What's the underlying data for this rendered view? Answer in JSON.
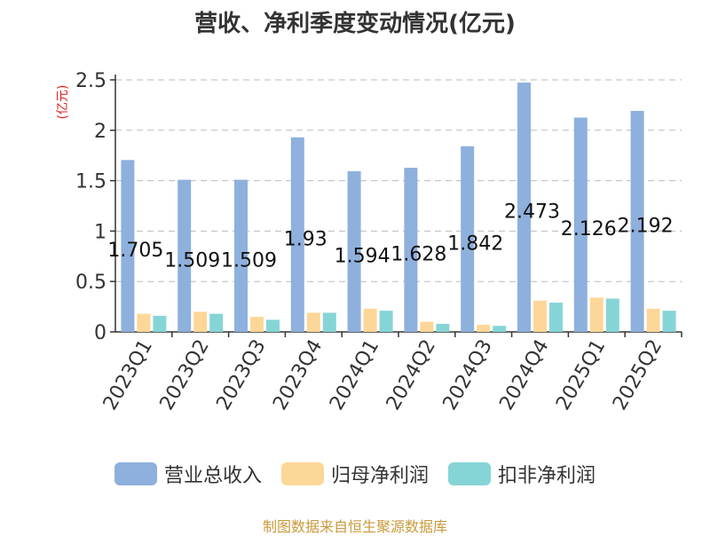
{
  "title": "营收、净利季度变动情况(亿元)",
  "source": "制图数据来自恒生聚源数据库",
  "chart_data": {
    "type": "bar",
    "title": "营收、净利季度变动情况(亿元)",
    "ylabel": "(亿元)",
    "ylim": [
      0,
      2.5
    ],
    "yticks": [
      "0",
      "0.5",
      "1",
      "1.5",
      "2",
      "2.5"
    ],
    "grid": true,
    "legend_position": "bottom",
    "categories": [
      "2023Q1",
      "2023Q2",
      "2023Q3",
      "2023Q4",
      "2024Q1",
      "2024Q2",
      "2024Q3",
      "2024Q4",
      "2025Q1",
      "2025Q2"
    ],
    "series": [
      {
        "name": "营业总收入",
        "color": "#8eb0dc",
        "values": [
          1.705,
          1.509,
          1.509,
          1.93,
          1.594,
          1.628,
          1.842,
          2.473,
          2.126,
          2.192
        ],
        "labels": [
          "1.705",
          "1.509",
          "1.509",
          "1.93",
          "1.594",
          "1.628",
          "1.842",
          "2.473",
          "2.126",
          "2.192"
        ]
      },
      {
        "name": "归母净利润",
        "color": "#fdd797",
        "values": [
          0.18,
          0.2,
          0.15,
          0.19,
          0.23,
          0.1,
          0.07,
          0.31,
          0.34,
          0.23
        ]
      },
      {
        "name": "扣非净利润",
        "color": "#86d5d6",
        "values": [
          0.16,
          0.18,
          0.12,
          0.19,
          0.21,
          0.08,
          0.06,
          0.29,
          0.33,
          0.21
        ]
      }
    ]
  }
}
